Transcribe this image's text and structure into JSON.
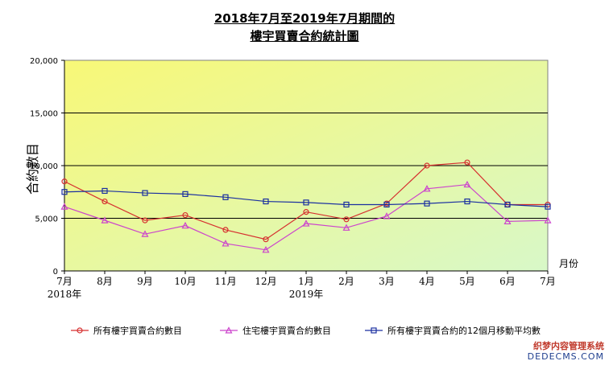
{
  "chart_data": {
    "type": "line",
    "title": "2018年7月至2019年7月期間的",
    "subtitle": "樓宇買賣合約統計圖",
    "ylabel": "合約數目",
    "xlabel": "月份",
    "ylim": [
      0,
      20000
    ],
    "yticks": [
      "0",
      "5,000",
      "10,000",
      "15,000",
      "20,000"
    ],
    "categories": [
      "7月",
      "8月",
      "9月",
      "10月",
      "11月",
      "12月",
      "1月",
      "2月",
      "3月",
      "4月",
      "5月",
      "6月",
      "7月"
    ],
    "year_labels": [
      {
        "index": 0,
        "label": "2018年"
      },
      {
        "index": 6,
        "label": "2019年"
      }
    ],
    "series": [
      {
        "name": "所有樓宇買賣合約數目",
        "color": "#d62f2f",
        "marker": "circle",
        "values": [
          8500,
          6600,
          4800,
          5300,
          3900,
          3000,
          5600,
          4900,
          6400,
          10000,
          10300,
          6300,
          6300
        ]
      },
      {
        "name": "住宅樓宇買賣合約數目",
        "color": "#cc44cc",
        "marker": "triangle",
        "values": [
          6100,
          4800,
          3500,
          4300,
          2600,
          2000,
          4500,
          4100,
          5200,
          7800,
          8200,
          4700,
          4800
        ]
      },
      {
        "name": "所有樓宇買賣合約的12個月移動平均數",
        "color": "#1a2fa0",
        "marker": "square",
        "values": [
          7500,
          7600,
          7400,
          7300,
          7000,
          6600,
          6500,
          6300,
          6300,
          6400,
          6600,
          6300,
          6100
        ]
      }
    ],
    "background": [
      "#f8f877",
      "#d8f8c8"
    ],
    "grid": true
  },
  "watermark": {
    "line1": "织梦内容管理系统",
    "line2": "DEDECMS.COM"
  }
}
